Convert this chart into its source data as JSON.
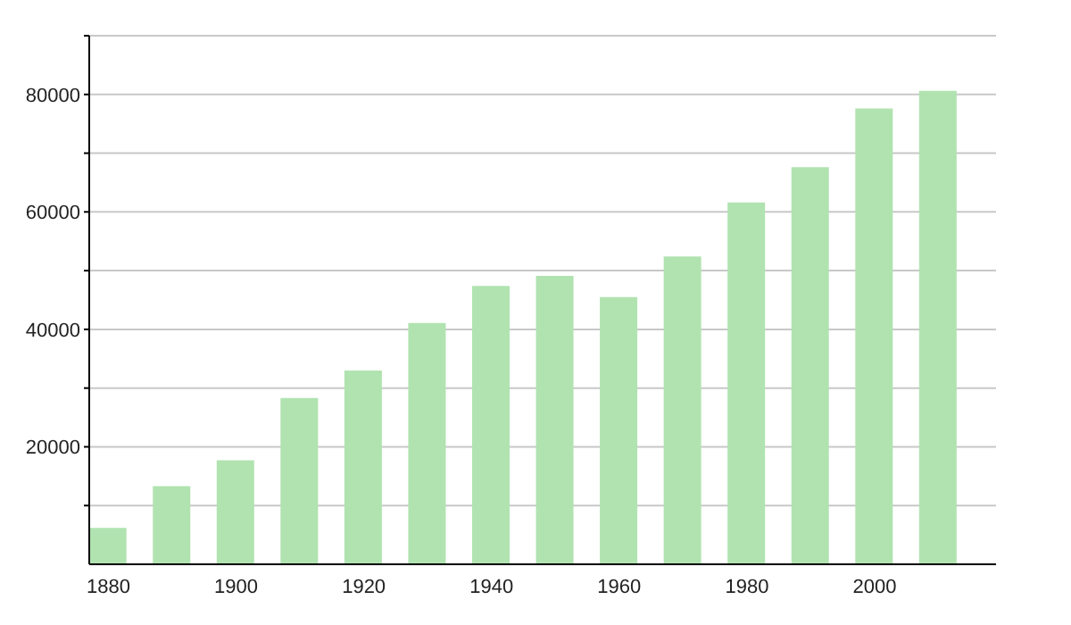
{
  "chart_data": {
    "type": "bar",
    "x": [
      1880,
      1890,
      1900,
      1910,
      1920,
      1930,
      1940,
      1950,
      1960,
      1970,
      1980,
      1990,
      2000,
      2010
    ],
    "values": [
      6200,
      13300,
      17700,
      28300,
      33000,
      41100,
      47400,
      49100,
      45500,
      52400,
      61600,
      67600,
      77600,
      80600
    ],
    "color": "#b0e3b0",
    "xlim": [
      1877,
      2019
    ],
    "xticks": [
      1880,
      1900,
      1920,
      1940,
      1960,
      1980,
      2000
    ],
    "ylim": [
      0,
      90000
    ],
    "yticks": [
      {
        "value": 10000,
        "label": null
      },
      20000,
      {
        "value": 30000,
        "label": null
      },
      40000,
      {
        "value": 50000,
        "label": null
      },
      60000,
      {
        "value": 70000,
        "label": null
      },
      80000,
      {
        "value": 90000,
        "label": null
      }
    ],
    "grid": "y"
  }
}
